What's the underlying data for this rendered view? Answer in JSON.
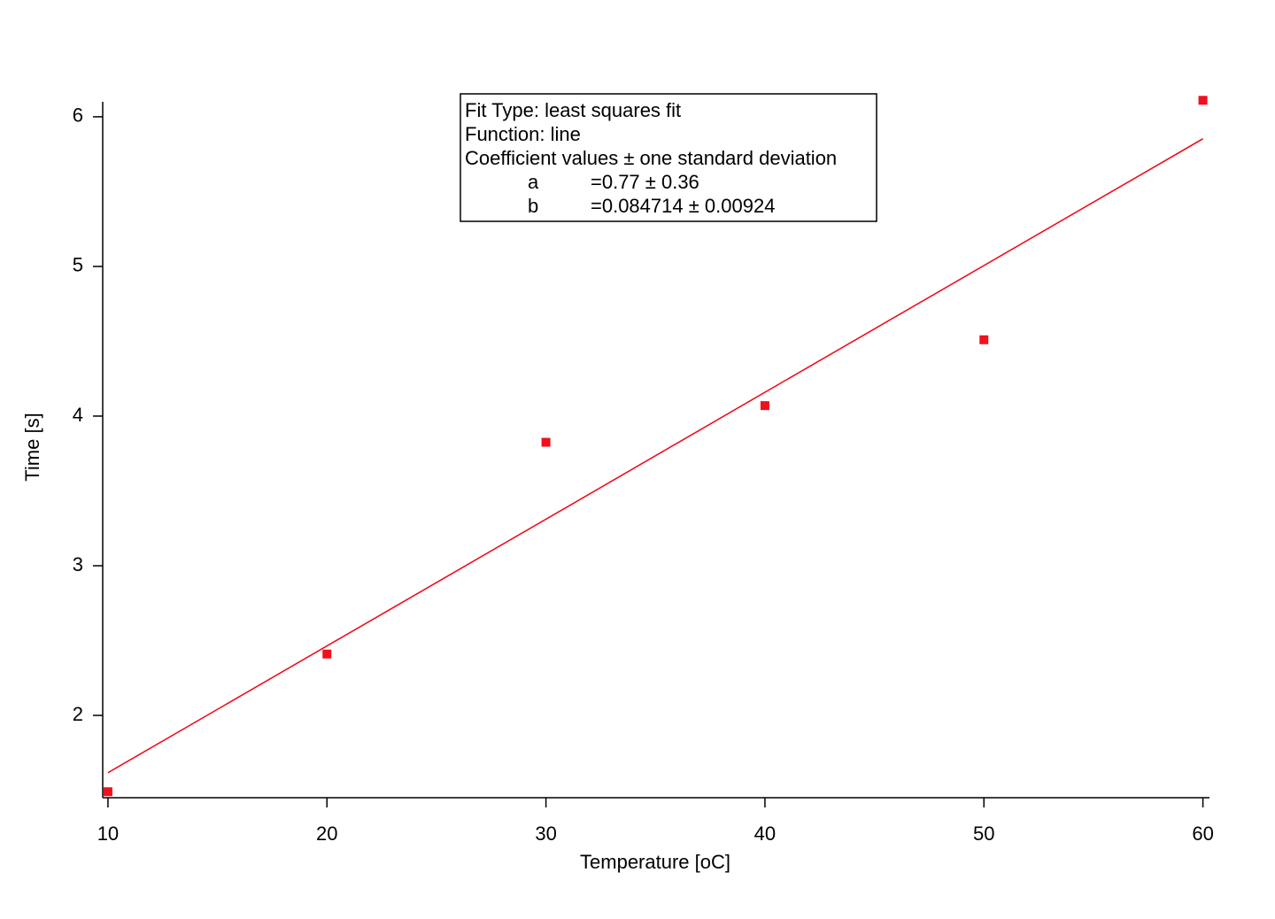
{
  "chart_data": {
    "type": "scatter",
    "x_label": "Temperature [oC]",
    "y_label": "Time [s]",
    "x": [
      10,
      20,
      30,
      40,
      50,
      60
    ],
    "series": [
      {
        "mode": "markers",
        "color": "#f0101e",
        "values": [
          1.49,
          2.41,
          3.825,
          4.07,
          4.51,
          6.11
        ]
      },
      {
        "mode": "line",
        "color": "#f0101e",
        "values": [
          1.617,
          2.464,
          3.311,
          4.159,
          5.006,
          5.853
        ]
      }
    ],
    "xlim": [
      9.76,
      60.3
    ],
    "xticks": [
      10,
      20,
      30,
      40,
      50,
      60
    ],
    "ylim": [
      1.45,
      6.1
    ],
    "yticks": [
      2,
      3,
      4,
      5,
      6
    ],
    "grid": false,
    "annotation": {
      "lines": [
        "Fit Type: least squares fit",
        "Function: line",
        "Coefficient values ± one standard deviation"
      ],
      "rows": [
        [
          "a",
          "=0.77 ± 0.36"
        ],
        [
          "b",
          "=0.084714 ± 0.00924"
        ]
      ]
    }
  }
}
